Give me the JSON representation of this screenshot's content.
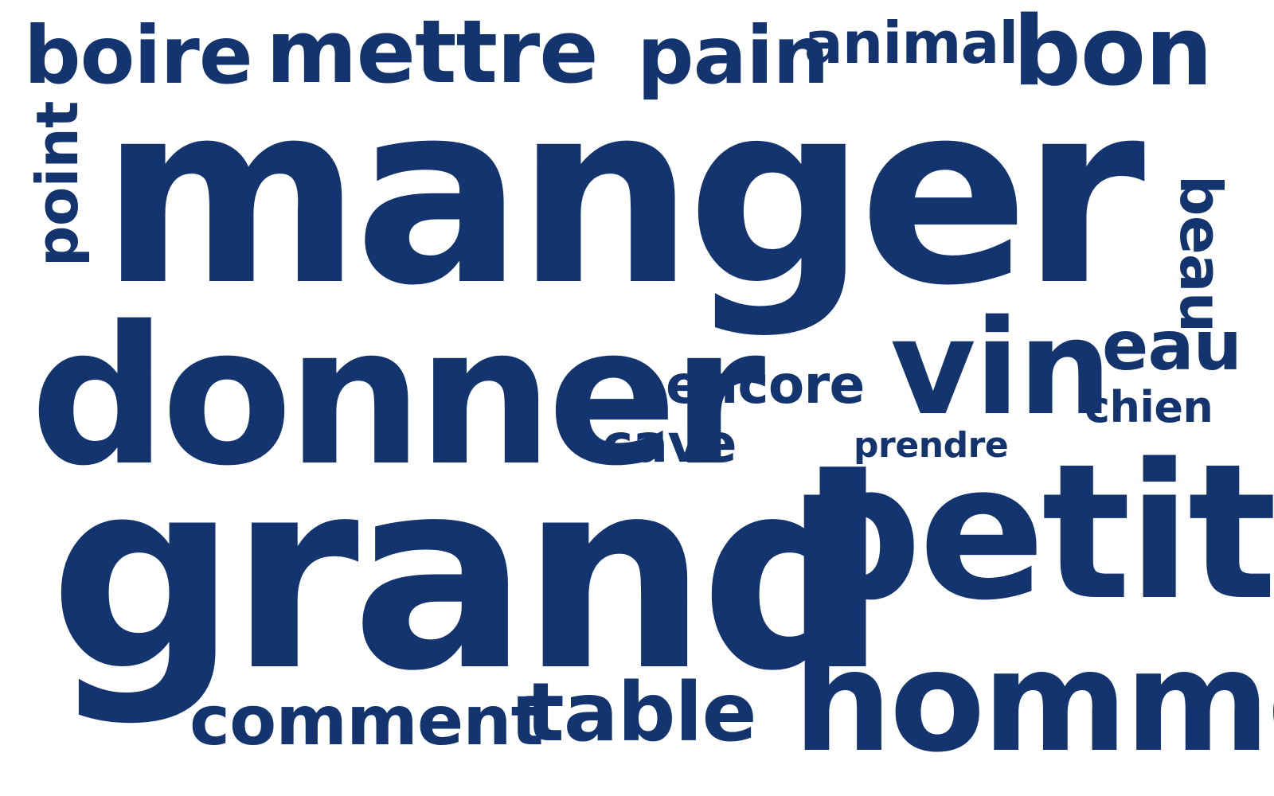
{
  "word_cloud": {
    "words": {
      "boire": "boire",
      "mettre": "mettre",
      "pain": "pain",
      "animal": "animal",
      "bon": "bon",
      "point": "point",
      "manger": "manger",
      "beau": "beau",
      "donner": "donner",
      "encore": "encore",
      "vin": "vin",
      "eau": "eau",
      "chien": "chien",
      "cave": "cave",
      "prendre": "prendre",
      "grand": "grand",
      "petit": "petit",
      "comment": "comment",
      "table": "table",
      "homme": "homme"
    },
    "colors": {
      "text": "#13346f",
      "background": "#ffffff"
    }
  }
}
